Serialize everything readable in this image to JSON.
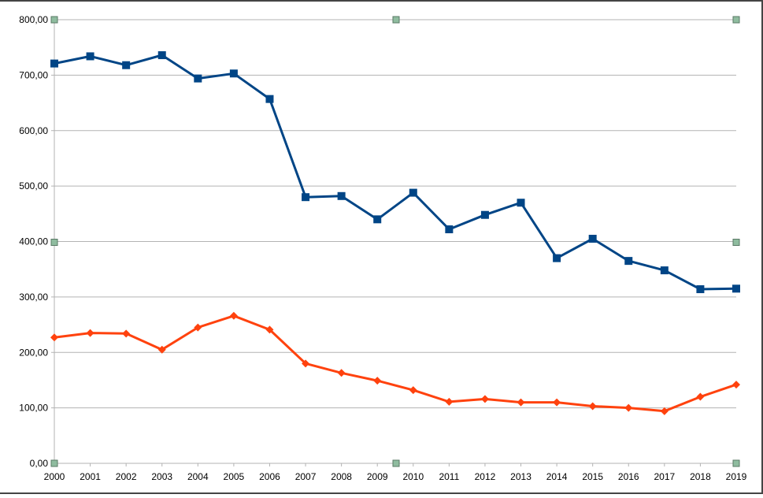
{
  "chart_data": {
    "type": "line",
    "title": "",
    "xlabel": "",
    "ylabel": "",
    "x": [
      "2000",
      "2001",
      "2002",
      "2003",
      "2004",
      "2005",
      "2006",
      "2007",
      "2008",
      "2009",
      "2010",
      "2011",
      "2012",
      "2013",
      "2014",
      "2015",
      "2016",
      "2017",
      "2018",
      "2019"
    ],
    "ylim": [
      0,
      800
    ],
    "yticks": [
      "0,00",
      "100,00",
      "200,00",
      "300,00",
      "400,00",
      "500,00",
      "600,00",
      "700,00",
      "800,00"
    ],
    "grid": true,
    "legend": "none",
    "series": [
      {
        "color": "#004586",
        "marker": "square",
        "values": [
          721,
          734,
          718,
          736,
          694,
          703,
          657,
          480,
          482,
          440,
          488,
          422,
          448,
          470,
          370,
          405,
          365,
          348,
          314,
          315
        ]
      },
      {
        "color": "#ff420e",
        "marker": "diamond",
        "values": [
          227,
          235,
          234,
          205,
          245,
          266,
          241,
          180,
          163,
          149,
          132,
          111,
          116,
          110,
          110,
          103,
          100,
          94,
          120,
          142
        ]
      }
    ]
  }
}
